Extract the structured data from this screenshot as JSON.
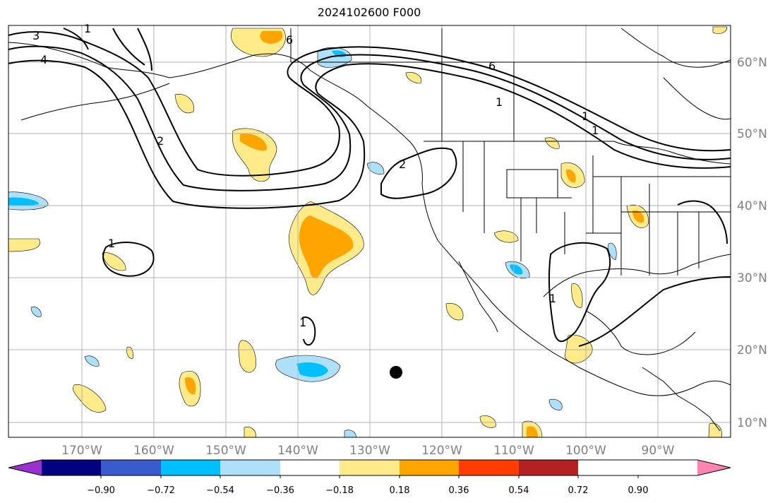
{
  "title": "2024102600 F000",
  "longitude_labels": [
    "170°W",
    "160°W",
    "150°W",
    "140°W",
    "130°W",
    "120°W",
    "110°W",
    "100°W",
    "90°W"
  ],
  "latitude_labels": [
    "60°N",
    "50°N",
    "40°N",
    "30°N",
    "20°N",
    "10°N"
  ],
  "colorbar": {
    "ticks": [
      "−0.90",
      "−0.72",
      "−0.54",
      "−0.36",
      "−0.18",
      "0.18",
      "0.36",
      "0.54",
      "0.72",
      "0.90"
    ],
    "colors": [
      "#9b30d0",
      "#000080",
      "#3a5bcc",
      "#00bfff",
      "#aee0fa",
      "#ffffff",
      "#ffeb8a",
      "#ffa500",
      "#ff3d00",
      "#b22222",
      "#ff85b0"
    ]
  },
  "contour_labels": [
    "3",
    "1",
    "4",
    "6",
    "6",
    "1",
    "2",
    "1",
    "1",
    "1",
    "1",
    "1",
    "2"
  ],
  "colors": {
    "land_line": "#000000",
    "grid": "#b0b0b0",
    "contour": "#000000"
  }
}
